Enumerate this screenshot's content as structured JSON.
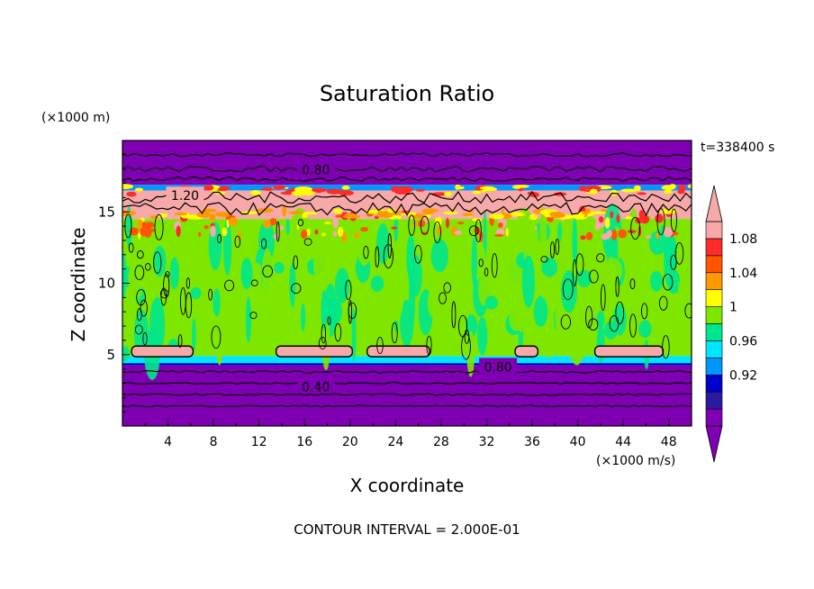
{
  "chart_data": {
    "type": "heatmap",
    "title": "Saturation Ratio",
    "xlabel": "X coordinate",
    "ylabel": "Z coordinate",
    "x_unit": "(×1000 m/s)",
    "y_unit": "(×1000 m)",
    "time_label": "t=338400 s",
    "footer": "CONTOUR INTERVAL = 2.000E-01",
    "xlim": [
      0,
      50
    ],
    "ylim": [
      0,
      20
    ],
    "x_ticks": [
      4,
      8,
      12,
      16,
      20,
      24,
      28,
      32,
      36,
      40,
      44,
      48
    ],
    "y_ticks": [
      5,
      10,
      15
    ],
    "contour_labels": [
      {
        "text": "0.80",
        "x": 17,
        "z": 18
      },
      {
        "text": "1.20",
        "x": 5.5,
        "z": 16.2
      },
      {
        "text": "0.80",
        "x": 33,
        "z": 4.2
      },
      {
        "text": "0.40",
        "x": 17,
        "z": 2.8
      }
    ],
    "colorbar": {
      "tick_labels": [
        "1.08",
        "1.04",
        "1",
        "0.96",
        "0.92"
      ],
      "colors": [
        "#7f00b2",
        "#2a1aa0",
        "#0000cc",
        "#0096ff",
        "#00e6ff",
        "#00e68c",
        "#7fe600",
        "#ffff00",
        "#ff9900",
        "#ff5500",
        "#ff2a2a",
        "#f7a8a8"
      ]
    },
    "bands": [
      {
        "zmin": 0,
        "zmax": 4.3,
        "value": "0.80"
      },
      {
        "zmin": 4.3,
        "zmax": 4.8,
        "value": "0.92-1.00"
      },
      {
        "zmin": 4.8,
        "zmax": 14.3,
        "value": "1.00"
      },
      {
        "zmin": 14.3,
        "zmax": 16.8,
        "value": "1.08+"
      },
      {
        "zmin": 16.8,
        "zmax": 20,
        "value": "0.80"
      }
    ]
  }
}
